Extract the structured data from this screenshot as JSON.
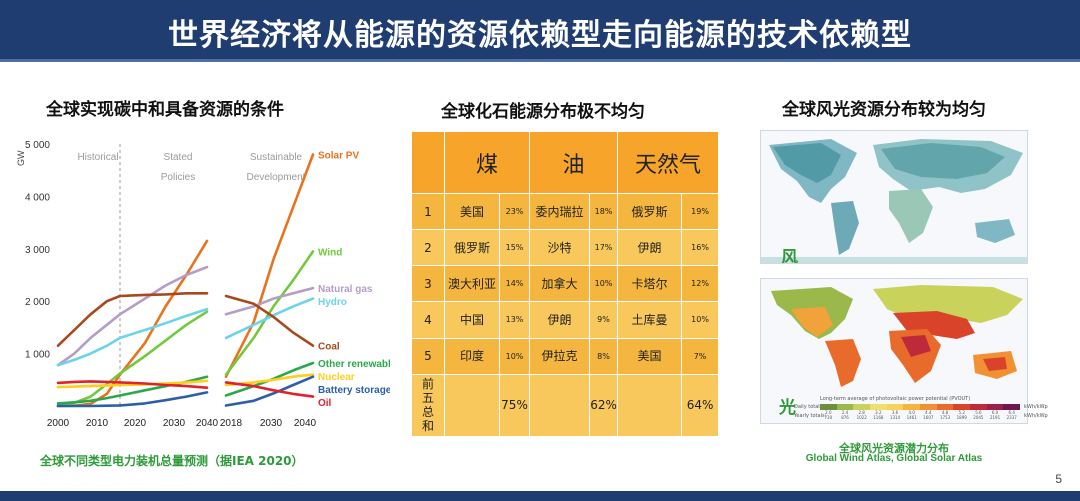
{
  "title": "世界经济将从能源的资源依赖型走向能源的技术依赖型",
  "page_number": "5",
  "left": {
    "heading": "全球实现碳中和具备资源的条件",
    "caption": "全球不同类型电力装机总量预测（据IEA 2020）"
  },
  "chart_data": {
    "type": "line",
    "title": "全球实现碳中和具备资源的条件",
    "ylabel": "GW",
    "ylim": [
      0,
      5000
    ],
    "yticks": [
      "1 000",
      "2 000",
      "3 000",
      "4 000",
      "5 000"
    ],
    "ytick_values": [
      1000,
      2000,
      3000,
      4000,
      5000
    ],
    "panels": [
      {
        "name": "Historical",
        "label_lines": [
          "Historical"
        ],
        "x": [
          2000,
          2005,
          2010,
          2015,
          2019
        ],
        "xticks": [
          "2000",
          "2010"
        ]
      },
      {
        "name": "Stated Policies",
        "label_lines": [
          "Stated",
          "Policies"
        ],
        "x": [
          2019,
          2025,
          2030,
          2035,
          2040
        ],
        "xticks": [
          "2020",
          "2030",
          "2040"
        ]
      },
      {
        "name": "Sustainable Development",
        "label_lines": [
          "Sustainable",
          "Development"
        ],
        "x": [
          2018,
          2025,
          2030,
          2035,
          2040
        ],
        "xticks": [
          "2018",
          "2030",
          "2040"
        ]
      }
    ],
    "series": [
      {
        "name": "Solar PV",
        "color": "#e8731e",
        "values": [
          [
            0,
            5,
            40,
            230,
            600
          ],
          [
            600,
            1200,
            1900,
            2500,
            3150
          ],
          [
            560,
            1600,
            2800,
            3800,
            4800
          ]
        ]
      },
      {
        "name": "Wind",
        "color": "#72c93e",
        "values": [
          [
            20,
            60,
            180,
            420,
            620
          ],
          [
            620,
            950,
            1250,
            1550,
            1800
          ],
          [
            600,
            1300,
            1900,
            2400,
            2950
          ]
        ]
      },
      {
        "name": "Natural gas",
        "color": "#b69cc8",
        "values": [
          [
            780,
            1000,
            1300,
            1550,
            1750
          ],
          [
            1750,
            2050,
            2300,
            2500,
            2650
          ],
          [
            1750,
            1900,
            2050,
            2150,
            2250
          ]
        ]
      },
      {
        "name": "Hydro",
        "color": "#6cd3ec",
        "values": [
          [
            780,
            880,
            1000,
            1150,
            1300
          ],
          [
            1300,
            1450,
            1580,
            1720,
            1850
          ],
          [
            1300,
            1550,
            1730,
            1900,
            2050
          ]
        ]
      },
      {
        "name": "Coal",
        "color": "#a7491c",
        "values": [
          [
            1150,
            1450,
            1750,
            2000,
            2100
          ],
          [
            2100,
            2120,
            2130,
            2150,
            2150
          ],
          [
            2100,
            1950,
            1700,
            1400,
            1150
          ]
        ]
      },
      {
        "name": "Other renewables",
        "color": "#2aa84a",
        "values": [
          [
            50,
            70,
            100,
            150,
            200
          ],
          [
            200,
            300,
            380,
            460,
            560
          ],
          [
            200,
            380,
            520,
            680,
            820
          ]
        ]
      },
      {
        "name": "Nuclear",
        "color": "#ffcf1c",
        "values": [
          [
            360,
            370,
            380,
            390,
            400
          ],
          [
            400,
            410,
            430,
            450,
            480
          ],
          [
            400,
            450,
            500,
            560,
            600
          ]
        ]
      },
      {
        "name": "Battery storage",
        "color": "#2b5fa8",
        "values": [
          [
            0,
            0,
            0,
            5,
            10
          ],
          [
            10,
            50,
            110,
            180,
            260
          ],
          [
            10,
            100,
            240,
            400,
            560
          ]
        ]
      },
      {
        "name": "Oil",
        "color": "#e0222a",
        "values": [
          [
            440,
            460,
            470,
            460,
            450
          ],
          [
            450,
            430,
            400,
            380,
            350
          ],
          [
            450,
            380,
            300,
            230,
            180
          ]
        ]
      }
    ],
    "legend_placement": "right"
  },
  "middle": {
    "heading": "全球化石能源分布极不均匀",
    "columns": [
      "煤",
      "油",
      "天然气"
    ],
    "rows": [
      {
        "rank": "1",
        "coal": "美国",
        "coal_pct": "23%",
        "oil": "委内瑞拉",
        "oil_pct": "18%",
        "gas": "俄罗斯",
        "gas_pct": "19%"
      },
      {
        "rank": "2",
        "coal": "俄罗斯",
        "coal_pct": "15%",
        "oil": "沙特",
        "oil_pct": "17%",
        "gas": "伊朗",
        "gas_pct": "16%"
      },
      {
        "rank": "3",
        "coal": "澳大利亚",
        "coal_pct": "14%",
        "oil": "加拿大",
        "oil_pct": "10%",
        "gas": "卡塔尔",
        "gas_pct": "12%"
      },
      {
        "rank": "4",
        "coal": "中国",
        "coal_pct": "13%",
        "oil": "伊朗",
        "oil_pct": "9%",
        "gas": "土库曼",
        "gas_pct": "10%"
      },
      {
        "rank": "5",
        "coal": "印度",
        "coal_pct": "10%",
        "oil": "伊拉克",
        "oil_pct": "8%",
        "gas": "美国",
        "gas_pct": "7%"
      }
    ],
    "summary": {
      "label": "前五总和",
      "coal_total": "75%",
      "oil_total": "62%",
      "gas_total": "64%"
    }
  },
  "right": {
    "heading": "全球风光资源分布较为均匀",
    "wind_label": "风",
    "solar_label": "光",
    "legend_title": "Long-term average of photovoltaic power potential (PVOUT)",
    "legend_daily": "Daily totals:",
    "legend_yearly": "Yearly totals:",
    "legend_daily_values": [
      "2.0",
      "2.4",
      "2.8",
      "3.2",
      "3.6",
      "4.0",
      "4.4",
      "4.8",
      "5.2",
      "5.6",
      "6.0",
      "6.4"
    ],
    "legend_yearly_values": [
      "730",
      "876",
      "1022",
      "1168",
      "1314",
      "1461",
      "1607",
      "1753",
      "1899",
      "2045",
      "2191",
      "2337"
    ],
    "legend_units": [
      "kWh/kWp",
      "kWh/kWp"
    ],
    "legend_colors": [
      "#6b8f3c",
      "#9bb84a",
      "#c9d25a",
      "#eee06a",
      "#f7d25a",
      "#f7b43c",
      "#f29133",
      "#e86b2c",
      "#d8432a",
      "#bf2a3a",
      "#9c1f49",
      "#6e1850"
    ],
    "caption_cn": "全球风光资源潜力分布",
    "caption_en": "Global Wind Atlas, Global Solar Atlas"
  }
}
